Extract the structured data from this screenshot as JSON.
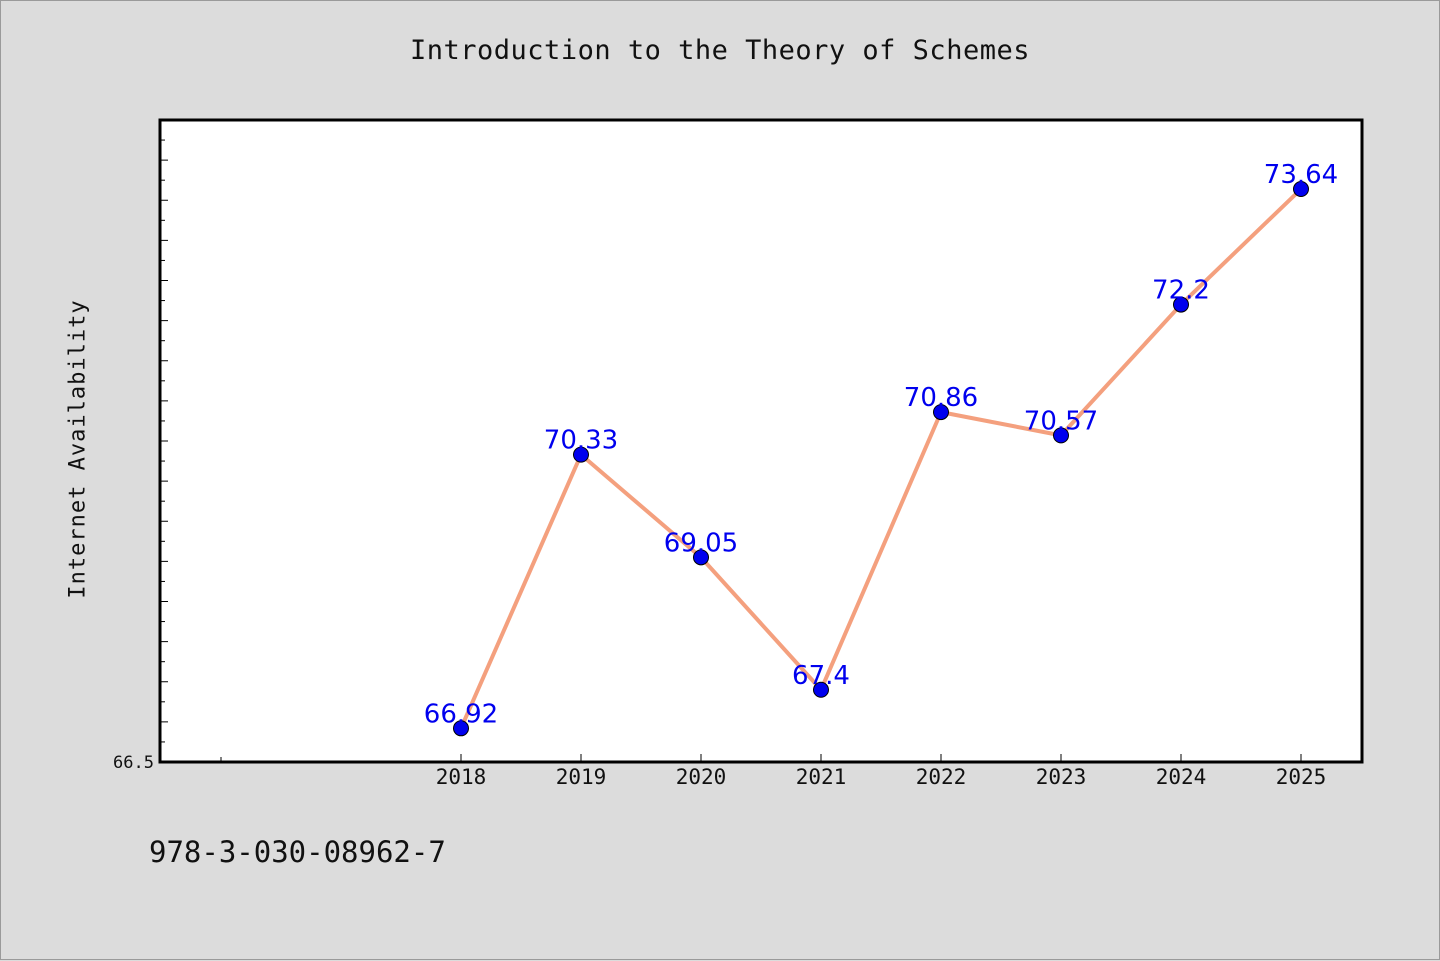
{
  "chart_data": {
    "type": "line",
    "title": "Introduction to the Theory of Schemes",
    "xlabel": "",
    "ylabel": "Internet Availability",
    "categories": [
      "2018",
      "2019",
      "2020",
      "2021",
      "2022",
      "2023",
      "2024",
      "2025"
    ],
    "series": [
      {
        "values": [
          66.92,
          70.33,
          69.05,
          67.4,
          70.86,
          70.57,
          72.2,
          73.64
        ],
        "data_labels": [
          "66.92",
          "70.33",
          "69.05",
          "67.4",
          "70.86",
          "70.57",
          "72.2",
          "73.64"
        ],
        "line_color": "#f4a07e",
        "marker_color": "#0000ee",
        "label_color": "#0000ee"
      }
    ],
    "ylim": [
      66.5,
      74.5
    ],
    "y_tick_labels": [
      "66.5"
    ],
    "grid": false,
    "legend": "none"
  },
  "footer": {
    "isbn": "978-3-030-08962-7"
  },
  "colors": {
    "background": "#dcdcdc",
    "plot_background": "#ffffff",
    "axis": "#000000"
  }
}
